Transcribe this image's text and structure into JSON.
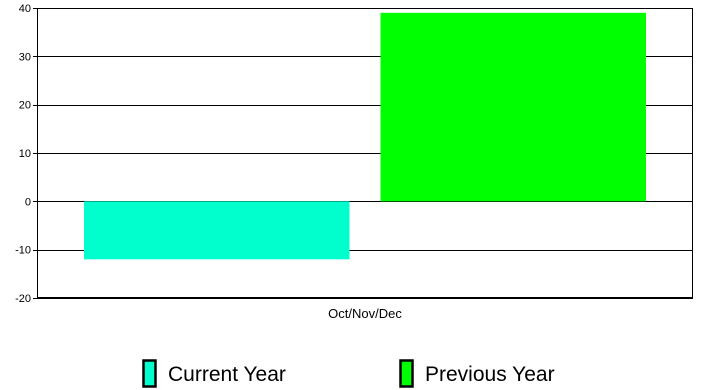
{
  "chart_data": {
    "type": "bar",
    "categories": [
      "Oct/Nov/Dec"
    ],
    "series": [
      {
        "name": "Current Year",
        "values": [
          -12
        ],
        "color": "#00FFCC"
      },
      {
        "name": "Previous Year",
        "values": [
          39
        ],
        "color": "#00FF00"
      }
    ],
    "yticks": [
      40,
      30,
      20,
      10,
      0,
      -10,
      -20
    ],
    "ylim": [
      -20,
      40
    ],
    "grid": true,
    "legend_position": "bottom"
  }
}
